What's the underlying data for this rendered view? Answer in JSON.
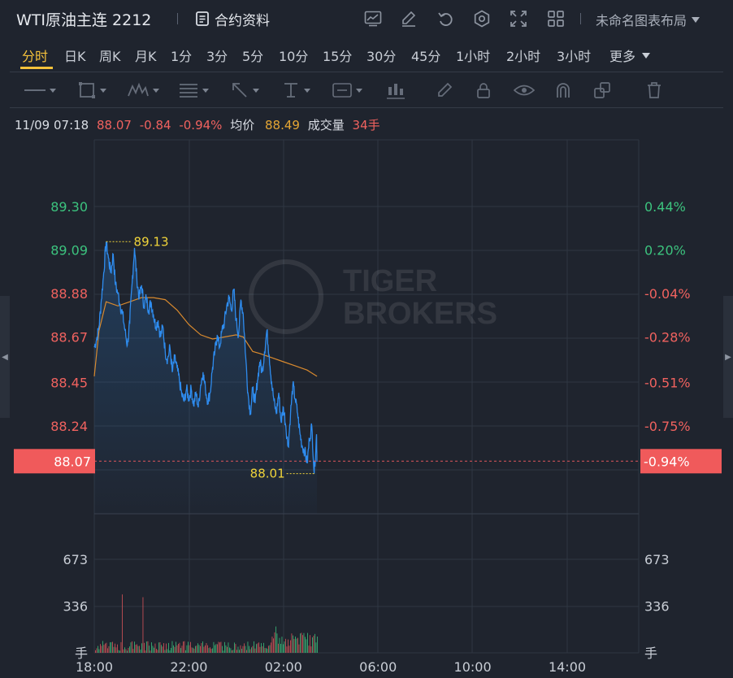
{
  "header": {
    "title": "WTI原油主连 2212",
    "contract_info_label": "合约资料",
    "layout_label": "未命名图表布局",
    "icons": [
      "indicator-icon",
      "draw-icon",
      "undo-icon",
      "gear-icon",
      "fullscreen-icon",
      "grid-icon"
    ]
  },
  "tabs": {
    "active": "分时",
    "items": [
      "分时",
      "日K",
      "周K",
      "月K",
      "1分",
      "3分",
      "5分",
      "10分",
      "15分",
      "30分",
      "45分",
      "1小时",
      "2小时",
      "3小时",
      "更多"
    ]
  },
  "tools": [
    "line-tool-icon",
    "rect-tool-icon",
    "pattern-tool-icon",
    "fib-tool-icon",
    "arrow-tool-icon",
    "measure-tool-icon",
    "text-tool-icon",
    "candle-tool-icon",
    "pencil-icon",
    "lock-icon",
    "eye-icon",
    "magnet-icon",
    "clone-icon",
    "trash-icon"
  ],
  "quote": {
    "datetime": "11/09 07:18",
    "price": "88.07",
    "change": "-0.84",
    "change_pct": "-0.94%",
    "avg_label": "均价",
    "avg_value": "88.49",
    "volume_label": "成交量",
    "volume_value": "34手"
  },
  "chart_data": {
    "type": "line",
    "watermark": [
      "TIGER",
      "BROKERS"
    ],
    "y_left_ticks": [
      "89.30",
      "89.09",
      "88.88",
      "88.67",
      "88.45",
      "88.24"
    ],
    "y_right_ticks": [
      "0.44%",
      "0.20%",
      "-0.04%",
      "-0.28%",
      "-0.51%",
      "-0.75%"
    ],
    "y_values": [
      89.3,
      89.09,
      88.88,
      88.67,
      88.45,
      88.24
    ],
    "x_ticks": [
      "18:00",
      "22:00",
      "02:00",
      "06:00",
      "10:00",
      "14:00"
    ],
    "current_price": "88.07",
    "current_price_value": 88.07,
    "current_pct": "-0.94%",
    "high_label": "89.13",
    "high_value": 89.13,
    "low_label": "88.01",
    "low_value": 88.01,
    "price_series": [
      [
        0,
        88.62
      ],
      [
        0.1,
        88.66
      ],
      [
        0.2,
        88.72
      ],
      [
        0.3,
        88.85
      ],
      [
        0.4,
        88.98
      ],
      [
        0.5,
        89.13
      ],
      [
        0.6,
        89.05
      ],
      [
        0.7,
        88.98
      ],
      [
        0.8,
        89.07
      ],
      [
        0.9,
        88.92
      ],
      [
        1.0,
        88.88
      ],
      [
        1.1,
        88.82
      ],
      [
        1.2,
        88.78
      ],
      [
        1.3,
        88.7
      ],
      [
        1.4,
        88.63
      ],
      [
        1.5,
        88.74
      ],
      [
        1.6,
        88.93
      ],
      [
        1.7,
        89.1
      ],
      [
        1.8,
        88.95
      ],
      [
        1.9,
        88.86
      ],
      [
        2.0,
        88.92
      ],
      [
        2.1,
        88.82
      ],
      [
        2.2,
        88.86
      ],
      [
        2.3,
        88.8
      ],
      [
        2.4,
        88.84
      ],
      [
        2.5,
        88.78
      ],
      [
        2.6,
        88.72
      ],
      [
        2.7,
        88.75
      ],
      [
        2.8,
        88.67
      ],
      [
        2.9,
        88.72
      ],
      [
        3.0,
        88.6
      ],
      [
        3.1,
        88.56
      ],
      [
        3.2,
        88.62
      ],
      [
        3.3,
        88.5
      ],
      [
        3.4,
        88.57
      ],
      [
        3.5,
        88.52
      ],
      [
        3.6,
        88.46
      ],
      [
        3.7,
        88.39
      ],
      [
        3.8,
        88.36
      ],
      [
        3.9,
        88.42
      ],
      [
        4.0,
        88.37
      ],
      [
        4.1,
        88.42
      ],
      [
        4.2,
        88.34
      ],
      [
        4.3,
        88.4
      ],
      [
        4.4,
        88.33
      ],
      [
        4.5,
        88.44
      ],
      [
        4.6,
        88.5
      ],
      [
        4.7,
        88.42
      ],
      [
        4.8,
        88.36
      ],
      [
        4.9,
        88.4
      ],
      [
        5.0,
        88.52
      ],
      [
        5.1,
        88.6
      ],
      [
        5.2,
        88.68
      ],
      [
        5.3,
        88.62
      ],
      [
        5.4,
        88.7
      ],
      [
        5.5,
        88.74
      ],
      [
        5.6,
        88.82
      ],
      [
        5.7,
        88.86
      ],
      [
        5.8,
        88.8
      ],
      [
        5.9,
        88.9
      ],
      [
        6.0,
        88.75
      ],
      [
        6.1,
        88.68
      ],
      [
        6.2,
        88.85
      ],
      [
        6.3,
        88.78
      ],
      [
        6.4,
        88.58
      ],
      [
        6.5,
        88.4
      ],
      [
        6.6,
        88.3
      ],
      [
        6.7,
        88.42
      ],
      [
        6.8,
        88.35
      ],
      [
        6.9,
        88.46
      ],
      [
        7.0,
        88.55
      ],
      [
        7.1,
        88.5
      ],
      [
        7.2,
        88.6
      ],
      [
        7.3,
        88.7
      ],
      [
        7.4,
        88.58
      ],
      [
        7.5,
        88.45
      ],
      [
        7.6,
        88.36
      ],
      [
        7.7,
        88.3
      ],
      [
        7.8,
        88.4
      ],
      [
        7.9,
        88.26
      ],
      [
        8.0,
        88.33
      ],
      [
        8.1,
        88.24
      ],
      [
        8.2,
        88.14
      ],
      [
        8.3,
        88.3
      ],
      [
        8.4,
        88.44
      ],
      [
        8.5,
        88.37
      ],
      [
        8.6,
        88.3
      ],
      [
        8.7,
        88.2
      ],
      [
        8.8,
        88.14
      ],
      [
        8.9,
        88.12
      ],
      [
        9.0,
        88.06
      ],
      [
        9.1,
        88.18
      ],
      [
        9.2,
        88.24
      ],
      [
        9.3,
        88.01
      ],
      [
        9.4,
        88.2
      ],
      [
        9.42,
        88.07
      ]
    ],
    "avg_series": [
      [
        0,
        88.48
      ],
      [
        0.2,
        88.7
      ],
      [
        0.5,
        88.84
      ],
      [
        1.0,
        88.82
      ],
      [
        1.5,
        88.84
      ],
      [
        2.0,
        88.86
      ],
      [
        2.5,
        88.86
      ],
      [
        3.0,
        88.85
      ],
      [
        3.5,
        88.8
      ],
      [
        4.0,
        88.73
      ],
      [
        4.5,
        88.68
      ],
      [
        5.0,
        88.66
      ],
      [
        5.5,
        88.67
      ],
      [
        6.0,
        88.68
      ],
      [
        6.3,
        88.67
      ],
      [
        6.7,
        88.6
      ],
      [
        7.0,
        88.59
      ],
      [
        7.5,
        88.57
      ],
      [
        8.0,
        88.55
      ],
      [
        8.5,
        88.53
      ],
      [
        9.0,
        88.51
      ],
      [
        9.42,
        88.48
      ]
    ],
    "volume_ticks": [
      "673",
      "336",
      "手"
    ],
    "volume_values": [
      673,
      336
    ]
  }
}
